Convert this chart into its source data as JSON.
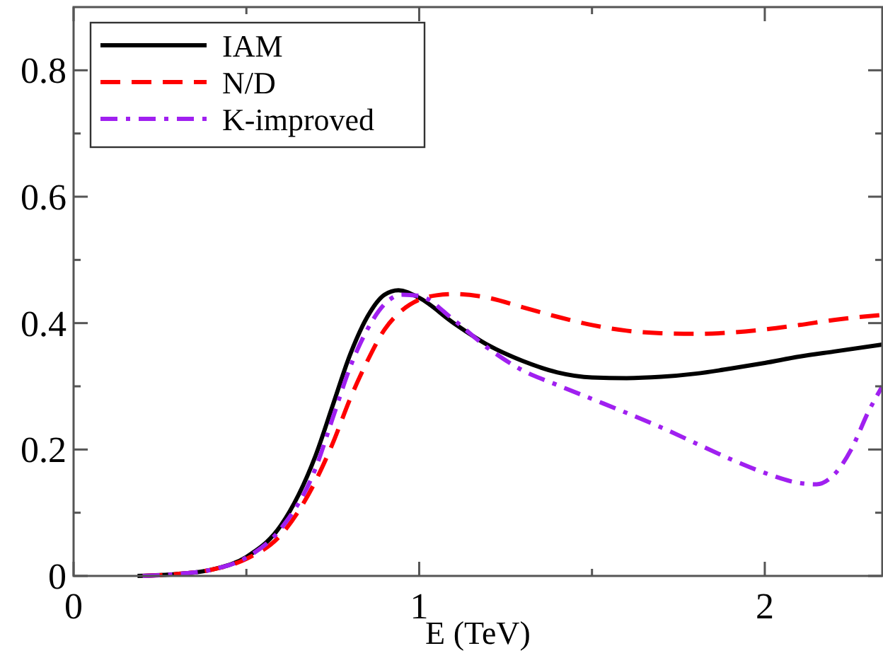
{
  "chart_data": {
    "type": "line",
    "xlabel": "E (TeV)",
    "xlim": [
      0,
      2.34
    ],
    "ylim": [
      0,
      0.9
    ],
    "xticks": [
      0,
      {
        "value": 0.5,
        "label": null
      },
      1,
      {
        "value": 1.5,
        "label": null
      },
      2
    ],
    "yticks": [
      0,
      {
        "value": 0.1,
        "label": null
      },
      0.2,
      {
        "value": 0.3,
        "label": null
      },
      0.4,
      {
        "value": 0.5,
        "label": null
      },
      0.6,
      {
        "value": 0.7,
        "label": null
      },
      0.8
    ],
    "grid": false,
    "legend": "top left",
    "marker": "none",
    "series": [
      {
        "name": "IAM",
        "color": "#000000",
        "line_style": "solid",
        "x": [
          0.185,
          0.3,
          0.4,
          0.5,
          0.6,
          0.7,
          0.75,
          0.8,
          0.85,
          0.9,
          0.94,
          1.0,
          1.1,
          1.2,
          1.3,
          1.4,
          1.5,
          1.6,
          1.7,
          1.8,
          1.9,
          2.0,
          2.1,
          2.2,
          2.34
        ],
        "values": [
          0,
          0.003,
          0.01,
          0.03,
          0.08,
          0.19,
          0.27,
          0.35,
          0.41,
          0.445,
          0.452,
          0.44,
          0.4,
          0.365,
          0.34,
          0.322,
          0.314,
          0.313,
          0.315,
          0.32,
          0.328,
          0.337,
          0.347,
          0.355,
          0.366
        ]
      },
      {
        "name": "N/D",
        "color": "#ff0000",
        "line_style": "dashed",
        "x": [
          0.2,
          0.3,
          0.4,
          0.5,
          0.6,
          0.7,
          0.75,
          0.8,
          0.85,
          0.9,
          0.95,
          1.0,
          1.05,
          1.1,
          1.2,
          1.3,
          1.4,
          1.5,
          1.6,
          1.7,
          1.8,
          1.9,
          2.0,
          2.1,
          2.2,
          2.34
        ],
        "values": [
          0,
          0.003,
          0.01,
          0.027,
          0.065,
          0.15,
          0.21,
          0.28,
          0.34,
          0.39,
          0.42,
          0.437,
          0.444,
          0.446,
          0.44,
          0.425,
          0.41,
          0.397,
          0.388,
          0.384,
          0.383,
          0.385,
          0.39,
          0.397,
          0.405,
          0.413
        ]
      },
      {
        "name": "K-improved",
        "color": "#a020f0",
        "line_style": "dashdot",
        "x": [
          0.2,
          0.3,
          0.4,
          0.5,
          0.6,
          0.7,
          0.75,
          0.8,
          0.85,
          0.9,
          0.95,
          1.0,
          1.1,
          1.2,
          1.3,
          1.4,
          1.5,
          1.6,
          1.7,
          1.8,
          1.9,
          2.0,
          2.1,
          2.15,
          2.2,
          2.25,
          2.3,
          2.34
        ],
        "values": [
          0,
          0.003,
          0.01,
          0.029,
          0.075,
          0.17,
          0.25,
          0.33,
          0.39,
          0.43,
          0.445,
          0.443,
          0.405,
          0.36,
          0.325,
          0.302,
          0.28,
          0.258,
          0.235,
          0.21,
          0.185,
          0.163,
          0.147,
          0.145,
          0.16,
          0.2,
          0.26,
          0.3
        ]
      }
    ]
  }
}
